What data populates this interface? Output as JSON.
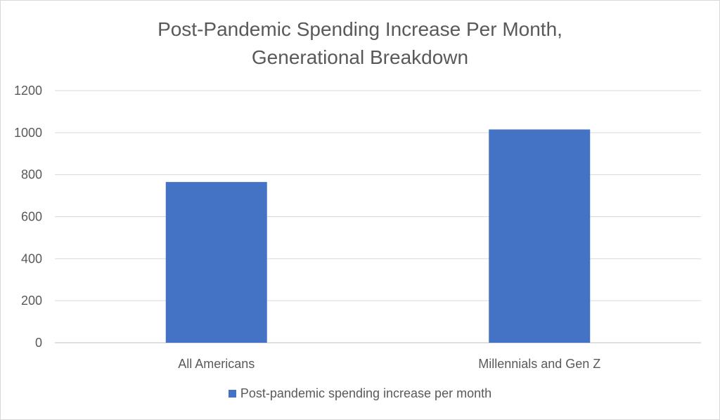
{
  "chart_data": {
    "type": "bar",
    "title": "Post-Pandemic Spending Increase Per Month,",
    "subtitle": "Generational Breakdown",
    "xlabel": "",
    "ylabel": "",
    "categories": [
      "All Americans",
      "Millennials and Gen Z"
    ],
    "series": [
      {
        "name": "Post-pandemic spending increase per month",
        "values": [
          765,
          1015
        ]
      }
    ],
    "ylim": [
      0,
      1200
    ],
    "yticks": [
      0,
      200,
      400,
      600,
      800,
      1000,
      1200
    ],
    "ytick_labels": [
      "0",
      "200",
      "400",
      "600",
      "800",
      "1000",
      "1200"
    ],
    "grid": true,
    "legend_position": "bottom",
    "colors": {
      "bar": "#4472c4",
      "grid": "#d9d9d9",
      "text": "#595959"
    }
  }
}
